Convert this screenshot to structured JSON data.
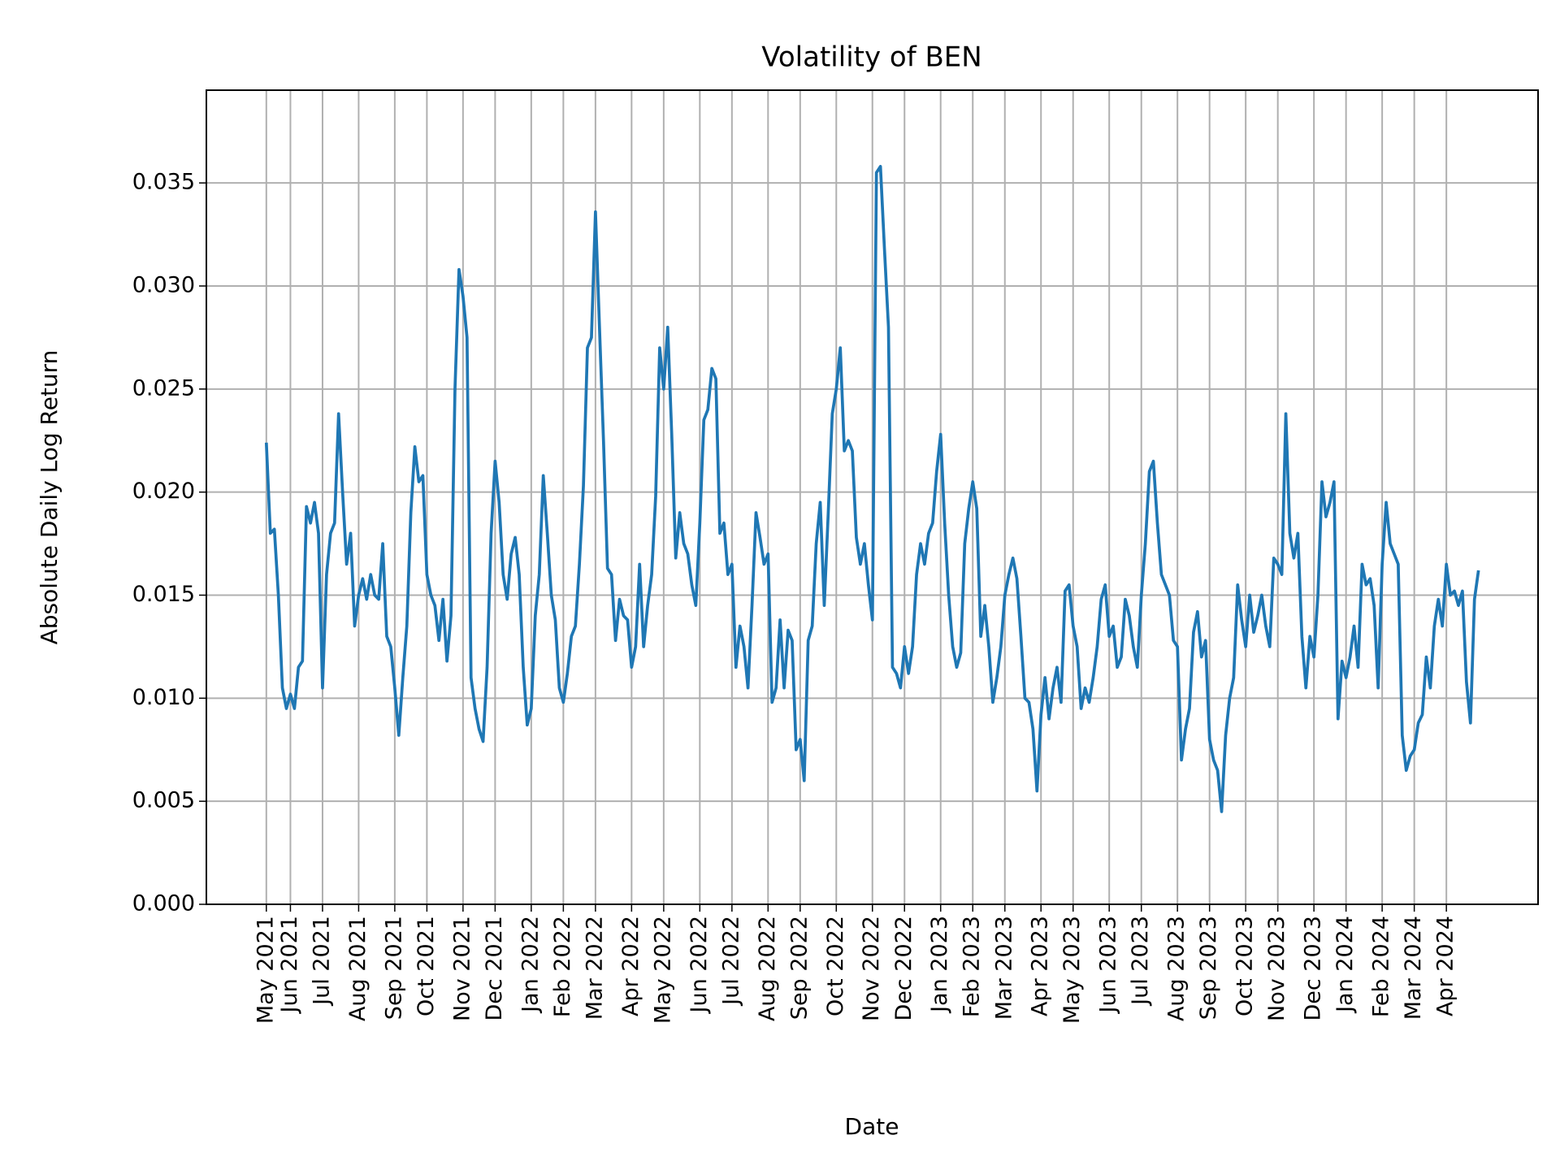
{
  "chart_data": {
    "type": "line",
    "title": "Volatility of BEN",
    "xlabel": "Date",
    "ylabel": "Absolute Daily Log Return",
    "color": "#1f77b4",
    "grid": true,
    "ylim": [
      0,
      0.0395
    ],
    "yticks": [
      {
        "value": 0,
        "label": "0.000"
      },
      0.005,
      {
        "value": 0.01,
        "label": "0.010"
      },
      0.015,
      {
        "value": 0.02,
        "label": "0.020"
      },
      0.025,
      {
        "value": 0.03,
        "label": "0.030"
      },
      0.035
    ],
    "categories": [
      "May 2021",
      null,
      null,
      null,
      null,
      null,
      "Jun 2021",
      null,
      null,
      null,
      null,
      null,
      null,
      null,
      "Jul 2021",
      null,
      null,
      null,
      null,
      null,
      null,
      null,
      null,
      "Aug 2021",
      null,
      null,
      null,
      null,
      null,
      null,
      null,
      null,
      "Sep 2021",
      null,
      null,
      null,
      null,
      null,
      null,
      null,
      "Oct 2021",
      null,
      null,
      null,
      null,
      null,
      null,
      null,
      null,
      "Nov 2021",
      null,
      null,
      null,
      null,
      null,
      null,
      null,
      "Dec 2021",
      null,
      null,
      null,
      null,
      null,
      null,
      null,
      null,
      "Jan 2022",
      null,
      null,
      null,
      null,
      null,
      null,
      null,
      "Feb 2022",
      null,
      null,
      null,
      null,
      null,
      null,
      null,
      "Mar 2022",
      null,
      null,
      null,
      null,
      null,
      null,
      null,
      null,
      "Apr 2022",
      null,
      null,
      null,
      null,
      null,
      null,
      null,
      "May 2022",
      null,
      null,
      null,
      null,
      null,
      null,
      null,
      null,
      "Jun 2022",
      null,
      null,
      null,
      null,
      null,
      null,
      null,
      "Jul 2022",
      null,
      null,
      null,
      null,
      null,
      null,
      null,
      null,
      "Aug 2022",
      null,
      null,
      null,
      null,
      null,
      null,
      null,
      "Sep 2022",
      null,
      null,
      null,
      null,
      null,
      null,
      null,
      null,
      "Oct 2022",
      null,
      null,
      null,
      null,
      null,
      null,
      null,
      null,
      "Nov 2022",
      null,
      null,
      null,
      null,
      null,
      null,
      null,
      "Dec 2022",
      null,
      null,
      null,
      null,
      null,
      null,
      null,
      null,
      "Jan 2023",
      null,
      null,
      null,
      null,
      null,
      null,
      null,
      "Feb 2023",
      null,
      null,
      null,
      null,
      null,
      null,
      null,
      "Mar 2023",
      null,
      null,
      null,
      null,
      null,
      null,
      null,
      null,
      "Apr 2023",
      null,
      null,
      null,
      null,
      null,
      null,
      null,
      "May 2023",
      null,
      null,
      null,
      null,
      null,
      null,
      null,
      null,
      "Jun 2023",
      null,
      null,
      null,
      null,
      null,
      null,
      null,
      "Jul 2023",
      null,
      null,
      null,
      null,
      null,
      null,
      null,
      null,
      "Aug 2023",
      null,
      null,
      null,
      null,
      null,
      null,
      null,
      "Sep 2023",
      null,
      null,
      null,
      null,
      null,
      null,
      null,
      null,
      "Oct 2023",
      null,
      null,
      null,
      null,
      null,
      null,
      null,
      "Nov 2023",
      null,
      null,
      null,
      null,
      null,
      null,
      null,
      null,
      "Dec 2023",
      null,
      null,
      null,
      null,
      null,
      null,
      null,
      "Jan 2024",
      null,
      null,
      null,
      null,
      null,
      null,
      null,
      null,
      "Feb 2024",
      null,
      null,
      null,
      null,
      null,
      null,
      null,
      "Mar 2024",
      null,
      null,
      null,
      null,
      null,
      null,
      null,
      "Apr 2024",
      null,
      null,
      null,
      null,
      null,
      null,
      null,
      null
    ],
    "values": [
      0.0224,
      0.018,
      0.0182,
      0.015,
      0.0105,
      0.0095,
      0.0102,
      0.0095,
      0.0115,
      0.0118,
      0.0193,
      0.0185,
      0.0195,
      0.018,
      0.0105,
      0.016,
      0.018,
      0.0185,
      0.0238,
      0.02,
      0.0165,
      0.018,
      0.0135,
      0.015,
      0.0158,
      0.0148,
      0.016,
      0.015,
      0.0148,
      0.0175,
      0.013,
      0.0125,
      0.0105,
      0.0082,
      0.011,
      0.0135,
      0.019,
      0.0222,
      0.0205,
      0.0208,
      0.016,
      0.015,
      0.0145,
      0.0128,
      0.0148,
      0.0118,
      0.014,
      0.025,
      0.0308,
      0.0295,
      0.0275,
      0.011,
      0.0095,
      0.0085,
      0.0079,
      0.0115,
      0.018,
      0.0215,
      0.0195,
      0.016,
      0.0148,
      0.017,
      0.0178,
      0.016,
      0.0115,
      0.0087,
      0.0095,
      0.014,
      0.016,
      0.0208,
      0.018,
      0.015,
      0.0138,
      0.0105,
      0.0098,
      0.0112,
      0.013,
      0.0135,
      0.0165,
      0.0203,
      0.027,
      0.0275,
      0.0336,
      0.028,
      0.0225,
      0.0163,
      0.016,
      0.0128,
      0.0148,
      0.014,
      0.0138,
      0.0115,
      0.0125,
      0.0165,
      0.0125,
      0.0145,
      0.016,
      0.0198,
      0.027,
      0.025,
      0.028,
      0.0228,
      0.0168,
      0.019,
      0.0175,
      0.017,
      0.0155,
      0.0145,
      0.0185,
      0.0235,
      0.024,
      0.026,
      0.0255,
      0.018,
      0.0185,
      0.016,
      0.0165,
      0.0115,
      0.0135,
      0.0125,
      0.0105,
      0.0145,
      0.019,
      0.0178,
      0.0165,
      0.017,
      0.0098,
      0.0105,
      0.0138,
      0.0105,
      0.0133,
      0.0128,
      0.0075,
      0.008,
      0.006,
      0.0128,
      0.0135,
      0.0175,
      0.0195,
      0.0145,
      0.019,
      0.0238,
      0.025,
      0.027,
      0.022,
      0.0225,
      0.022,
      0.0178,
      0.0165,
      0.0175,
      0.0155,
      0.0138,
      0.0355,
      0.0358,
      0.0318,
      0.028,
      0.0115,
      0.0112,
      0.0105,
      0.0125,
      0.0112,
      0.0125,
      0.016,
      0.0175,
      0.0165,
      0.018,
      0.0185,
      0.021,
      0.0228,
      0.0185,
      0.015,
      0.0125,
      0.0115,
      0.0122,
      0.0175,
      0.0192,
      0.0205,
      0.0192,
      0.013,
      0.0145,
      0.0125,
      0.0098,
      0.011,
      0.0125,
      0.015,
      0.016,
      0.0168,
      0.0158,
      0.013,
      0.01,
      0.0098,
      0.0085,
      0.0055,
      0.0092,
      0.011,
      0.009,
      0.0105,
      0.0115,
      0.0098,
      0.0152,
      0.0155,
      0.0135,
      0.0125,
      0.0095,
      0.0105,
      0.0098,
      0.011,
      0.0125,
      0.0148,
      0.0155,
      0.013,
      0.0135,
      0.0115,
      0.012,
      0.0148,
      0.014,
      0.0125,
      0.0115,
      0.015,
      0.0175,
      0.021,
      0.0215,
      0.0185,
      0.016,
      0.0155,
      0.015,
      0.0128,
      0.0125,
      0.007,
      0.0085,
      0.0095,
      0.0132,
      0.0142,
      0.012,
      0.0128,
      0.008,
      0.007,
      0.0065,
      0.0045,
      0.0082,
      0.01,
      0.011,
      0.0155,
      0.0138,
      0.0125,
      0.015,
      0.0132,
      0.014,
      0.015,
      0.0135,
      0.0125,
      0.0168,
      0.0165,
      0.016,
      0.0238,
      0.018,
      0.0168,
      0.018,
      0.013,
      0.0105,
      0.013,
      0.012,
      0.015,
      0.0205,
      0.0188,
      0.0195,
      0.0205,
      0.009,
      0.0118,
      0.011,
      0.012,
      0.0135,
      0.0115,
      0.0165,
      0.0155,
      0.0158,
      0.0145,
      0.0105,
      0.0165,
      0.0195,
      0.0175,
      0.017,
      0.0165,
      0.0082,
      0.0065,
      0.0072,
      0.0075,
      0.0088,
      0.0092,
      0.012,
      0.0105,
      0.0135,
      0.0148,
      0.0135,
      0.0165,
      0.015,
      0.0152,
      0.0145,
      0.0152,
      0.0108,
      0.0088,
      0.0148,
      0.0162
    ]
  }
}
